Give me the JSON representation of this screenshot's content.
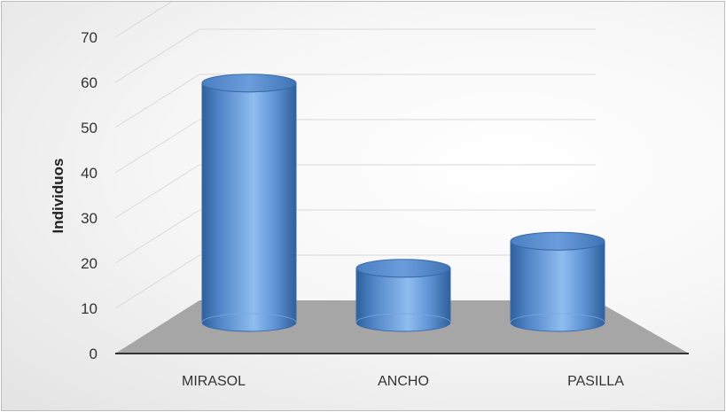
{
  "chart_data": {
    "type": "bar",
    "style": "3d-cylinder",
    "categories": [
      "MIRASOL",
      "ANCHO",
      "PASILLA"
    ],
    "values": [
      53,
      12,
      18
    ],
    "title": "",
    "xlabel": "",
    "ylabel": "Individuos",
    "ylim": [
      0,
      70
    ],
    "yticks": [
      0,
      10,
      20,
      30,
      40,
      50,
      60,
      70
    ],
    "grid": true,
    "legend": "none",
    "colors": {
      "bar": "#5b8fd0",
      "bar_light": "#a9ccf3",
      "bar_dark": "#2c5d97",
      "floor": "#a6a6a6",
      "gridline": "#d9d9d9",
      "axis": "#333333"
    }
  }
}
